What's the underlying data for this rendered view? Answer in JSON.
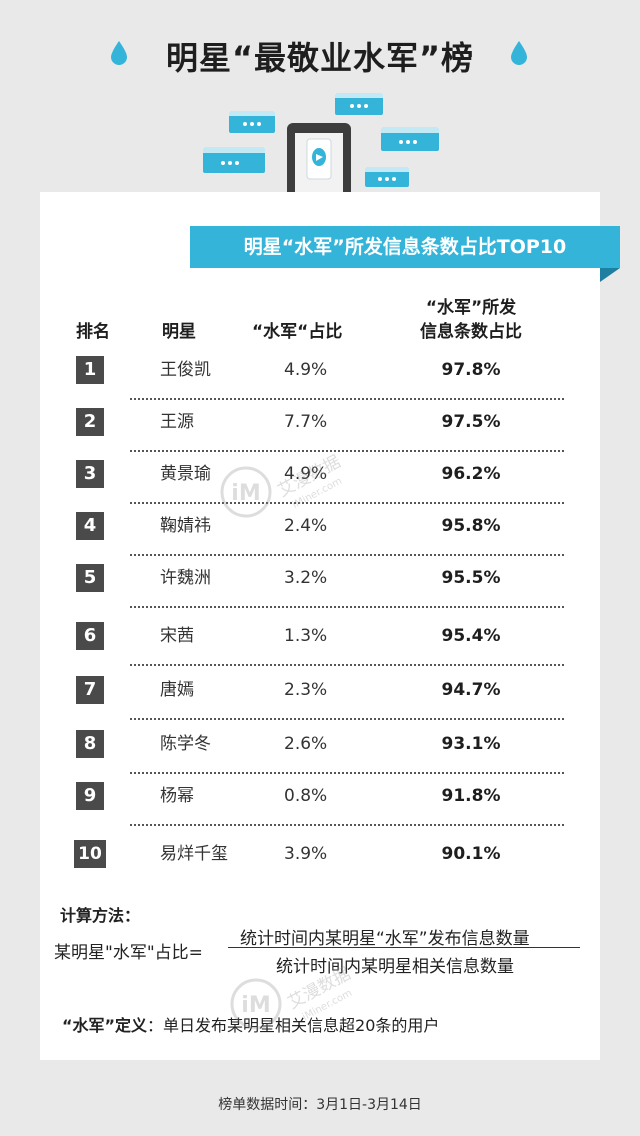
{
  "title": "明星“最敬业水军”榜",
  "ribbon": "明星“水军”所发信息条数占比TOP10",
  "headers": {
    "rank": "排名",
    "star": "明星",
    "ratio": "“水军“占比",
    "info_line1": "“水军”所发",
    "info_line2": "信息条数占比"
  },
  "rows": [
    {
      "rank": "1",
      "star": "王俊凯",
      "ratio": "4.9%",
      "info": "97.8%"
    },
    {
      "rank": "2",
      "star": "王源",
      "ratio": "7.7%",
      "info": "97.5%"
    },
    {
      "rank": "3",
      "star": "黄景瑜",
      "ratio": "4.9%",
      "info": "96.2%"
    },
    {
      "rank": "4",
      "star": "鞠婧祎",
      "ratio": "2.4%",
      "info": "95.8%"
    },
    {
      "rank": "5",
      "star": "许魏洲",
      "ratio": "3.2%",
      "info": "95.5%"
    },
    {
      "rank": "6",
      "star": "宋茜",
      "ratio": "1.3%",
      "info": "95.4%"
    },
    {
      "rank": "7",
      "star": "唐嫣",
      "ratio": "2.3%",
      "info": "94.7%"
    },
    {
      "rank": "8",
      "star": "陈学冬",
      "ratio": "2.6%",
      "info": "93.1%"
    },
    {
      "rank": "9",
      "star": "杨幂",
      "ratio": "0.8%",
      "info": "91.8%"
    },
    {
      "rank": "10",
      "star": "易烊千玺",
      "ratio": "3.9%",
      "info": "90.1%"
    }
  ],
  "method": {
    "title": "计算方法：",
    "left": "某明星\"水军\"占比=",
    "numerator": "统计时间内某明星“水军”发布信息数量",
    "denominator": "统计时间内某明星相关信息数量"
  },
  "definition": {
    "term": "“水军”定义",
    "text": "：单日发布某明星相关信息超20条的用户"
  },
  "footer": "榜单数据时间：3月1日-3月14日",
  "watermark": {
    "logo": "iM",
    "cn": "艾漫数据",
    "en": "iMiner.com"
  },
  "colors": {
    "accent": "#35b4d9",
    "badge": "#4a4a4a",
    "background": "#e9e9e9"
  }
}
